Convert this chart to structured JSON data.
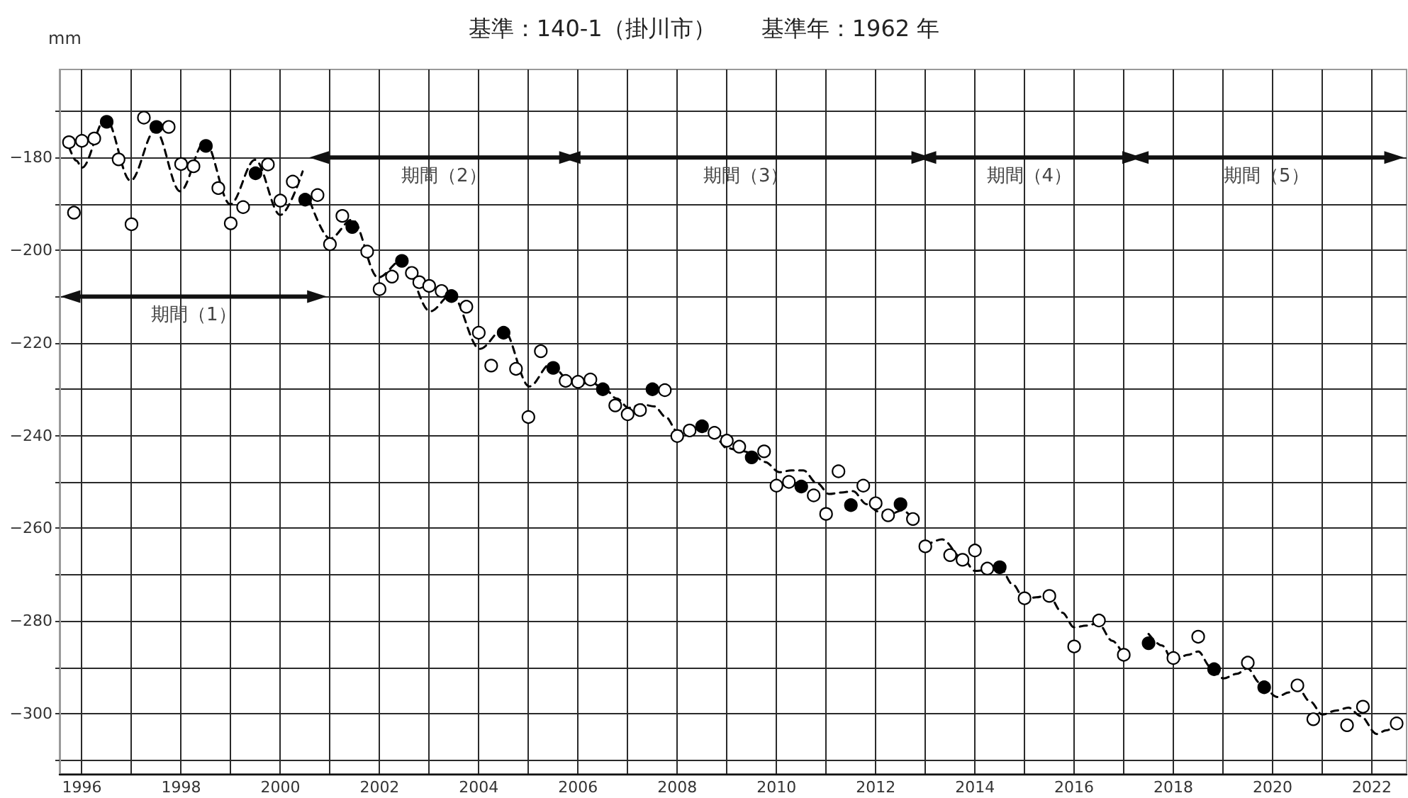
{
  "chart_data": {
    "type": "scatter",
    "title": "基準：140-1（掛川市）　　基準年：1962 年",
    "ylabel": "mm",
    "xlim": [
      1995.55,
      2022.7
    ],
    "xticks": [
      1996,
      {
        "value": 1997,
        "label": null
      },
      1998,
      {
        "value": 1999,
        "label": null
      },
      2000,
      {
        "value": 2001,
        "label": null
      },
      2002,
      {
        "value": 2003,
        "label": null
      },
      2004,
      {
        "value": 2005,
        "label": null
      },
      2006,
      {
        "value": 2007,
        "label": null
      },
      2008,
      {
        "value": 2009,
        "label": null
      },
      2010,
      {
        "value": 2011,
        "label": null
      },
      2012,
      {
        "value": 2013,
        "label": null
      },
      2014,
      {
        "value": 2015,
        "label": null
      },
      2016,
      {
        "value": 2017,
        "label": null
      },
      2018,
      {
        "value": 2019,
        "label": null
      },
      2020,
      {
        "value": 2021,
        "label": null
      },
      2022
    ],
    "ylim": [
      -313,
      -161
    ],
    "yticks": [
      {
        "value": -310,
        "label": null
      },
      -300,
      {
        "value": -290,
        "label": null
      },
      -280,
      {
        "value": -270,
        "label": null
      },
      -260,
      {
        "value": -250,
        "label": null
      },
      -240,
      {
        "value": -230,
        "label": null
      },
      -220,
      {
        "value": -210,
        "label": null
      },
      -200,
      {
        "value": -190,
        "label": null
      },
      -180,
      {
        "value": -170,
        "label": null
      }
    ],
    "grid": true,
    "marker": "circle",
    "series": [
      {
        "type": "line",
        "color": "#000000",
        "line_style": "dashed",
        "marker": "none",
        "x": [
          1995.74,
          1995.89,
          1996.0,
          1996.48,
          1996.98,
          1997.48,
          1997.98,
          1998.48,
          1998.99,
          1999.49,
          2000.0,
          2000.45,
          2000.52,
          2000.6,
          2001.0,
          2001.45,
          2001.97,
          2002.45,
          2003.02,
          2003.45,
          2004.02,
          2004.49,
          2005.02,
          2005.45,
          2005.78,
          2006.02,
          2006.25,
          2006.54,
          2006.78,
          2007.02,
          2007.3,
          2007.54,
          2007.77,
          2008.0,
          2008.25,
          2008.49,
          2008.77,
          2009.0,
          2009.25,
          2009.49,
          2009.77,
          2010.06,
          2010.3,
          2010.54,
          2010.82,
          2011.06,
          2011.3,
          2011.54,
          2011.82,
          2012.06,
          2012.3,
          2012.54,
          2012.78,
          2012.9,
          2013.0,
          2013.34,
          2013.75,
          2014.0,
          2014.24,
          2014.51,
          2014.76,
          2015.0,
          2015.24,
          2015.48,
          2015.76,
          2016.0,
          2016.24,
          2016.48,
          2016.77,
          2017.0,
          2017.25,
          2017.5,
          2017.77,
          2018.0,
          2018.29,
          2018.5,
          2018.75,
          2019.01,
          2019.28,
          2019.49,
          2019.75,
          2020.09,
          2020.33,
          2020.5,
          2020.76,
          2021.0,
          2021.29,
          2021.53,
          2021.77,
          2022.1,
          2022.29,
          2022.52
        ],
        "values": [
          -177.7,
          -180.7,
          -182.2,
          -171.6,
          -185.0,
          -174.1,
          -187.3,
          -176.6,
          -190.1,
          -180.5,
          -192.4,
          -183.0,
          null,
          -189.5,
          -197.5,
          -193.4,
          -205.9,
          -202.2,
          -213.2,
          -209.6,
          -221.3,
          -217.1,
          -229.4,
          -224.5,
          -227.6,
          -229.0,
          -228.4,
          -230.0,
          -232.0,
          -234.0,
          -233.3,
          -233.7,
          -236.0,
          -239.1,
          -238.6,
          -238.6,
          -240.4,
          -242.7,
          -243.2,
          -243.7,
          -245.7,
          -247.9,
          -247.5,
          -247.5,
          -250.3,
          -252.6,
          -252.3,
          -252.0,
          -254.8,
          -256.4,
          -256.9,
          -256.1,
          -258.4,
          null,
          -263.8,
          -262.4,
          -266.5,
          -269.2,
          -269.0,
          -268.5,
          -272.1,
          -275.3,
          -274.9,
          -274.4,
          -278.2,
          -281.4,
          -281.0,
          -280.5,
          -284.3,
          -287.5,
          null,
          -282.8,
          -285.3,
          -288.8,
          -287.3,
          -286.6,
          -289.9,
          -292.4,
          -291.4,
          -290.2,
          -293.4,
          -296.4,
          -295.4,
          -294.4,
          -297.4,
          -300.2,
          -299.3,
          -298.7,
          -300.5,
          -304.4,
          -303.6,
          -302.1
        ]
      },
      {
        "color": "#ffffff",
        "x": [
          1995.74,
          1995.84,
          1996.0,
          1996.25,
          1996.74,
          1997.0,
          1997.25,
          1997.75,
          1998.0,
          1998.25,
          1998.75,
          1999.0,
          1999.25,
          1999.75,
          2000.0,
          2000.25,
          2000.75,
          2001.0,
          2001.25,
          2001.75,
          2002.0,
          2002.25,
          2002.65,
          2002.8,
          2003.0,
          2003.25,
          2003.75,
          2004.0,
          2004.25,
          2004.75,
          2005.0,
          2005.25,
          2005.75,
          2006.0,
          2006.25,
          2006.75,
          2007.0,
          2007.25,
          2007.75,
          2008.0,
          2008.25,
          2008.75,
          2009.0,
          2009.25,
          2009.75,
          2010.0,
          2010.25,
          2010.75,
          2011.0,
          2011.25,
          2011.75,
          2012.0,
          2012.25,
          2012.75,
          2013.0,
          2013.5,
          2013.75,
          2014.0,
          2014.25,
          2015.0,
          2015.5,
          2016.0,
          2016.5,
          2017.0,
          2018.0,
          2018.5,
          2019.5,
          2020.5,
          2020.82,
          2021.5,
          2021.82,
          2022.5
        ],
        "values": [
          -176.7,
          -191.9,
          -176.4,
          -175.9,
          -180.4,
          -194.4,
          -171.4,
          -173.4,
          -181.4,
          -181.9,
          -186.6,
          -194.2,
          -190.7,
          -181.5,
          -189.3,
          -185.2,
          -188.1,
          -198.7,
          -192.6,
          -200.3,
          -208.4,
          -205.7,
          -204.9,
          -206.9,
          -207.7,
          -208.8,
          -212.2,
          -217.8,
          -224.9,
          -225.6,
          -236.0,
          -221.8,
          -228.2,
          -228.4,
          -227.9,
          -233.5,
          -235.4,
          -234.5,
          -230.2,
          -240.1,
          -238.9,
          -239.4,
          -241.1,
          -242.4,
          -243.4,
          -250.8,
          -250.0,
          -252.9,
          -256.9,
          -247.7,
          -250.8,
          -254.6,
          -257.2,
          -258.0,
          -263.9,
          -265.8,
          -266.8,
          -264.8,
          -268.7,
          -275.1,
          -274.6,
          -285.5,
          -279.9,
          -287.3,
          -288.0,
          -283.4,
          -289.0,
          -293.9,
          -301.2,
          -302.5,
          -298.5,
          -302.1
        ]
      },
      {
        "color": "#000000",
        "x": [
          1996.5,
          1997.5,
          1998.5,
          1999.5,
          2000.5,
          2001.45,
          2002.45,
          2003.45,
          2004.5,
          2005.5,
          2006.5,
          2007.5,
          2008.5,
          2009.5,
          2010.5,
          2011.5,
          2012.5,
          2014.5,
          2017.5,
          2018.82,
          2019.83
        ],
        "values": [
          -172.3,
          -173.4,
          -177.5,
          -183.4,
          -189.1,
          -195.0,
          -202.3,
          -209.9,
          -217.8,
          -225.4,
          -230.0,
          -230.0,
          -238.0,
          -244.7,
          -251.0,
          -255.0,
          -254.8,
          -268.4,
          -284.8,
          -290.4,
          -294.3
        ]
      },
      {
        "type": "line",
        "name": "期間（1）",
        "color": "#111111",
        "line_style": "solid",
        "marker": "triangle",
        "x": [
          1995.77,
          2000.74
        ],
        "values": [
          -210,
          -210
        ]
      },
      {
        "type": "line",
        "name": "期間（2）",
        "color": "#111111",
        "line_style": "solid",
        "marker": "triangle",
        "x": [
          2000.78,
          2005.82
        ],
        "values": [
          -180,
          -180
        ]
      },
      {
        "type": "line",
        "name": "期間（3）",
        "color": "#111111",
        "line_style": "solid",
        "marker": "triangle",
        "x": [
          2005.85,
          2012.92
        ],
        "values": [
          -180,
          -180
        ]
      },
      {
        "type": "line",
        "name": "期間（4）",
        "color": "#111111",
        "line_style": "solid",
        "marker": "triangle",
        "x": [
          2013.02,
          2017.17
        ],
        "values": [
          -180,
          -180
        ]
      },
      {
        "type": "line",
        "name": "期間（5）",
        "color": "#111111",
        "line_style": "solid",
        "marker": "triangle",
        "x": [
          2017.3,
          2022.45
        ],
        "values": [
          -180,
          -180
        ]
      }
    ]
  }
}
